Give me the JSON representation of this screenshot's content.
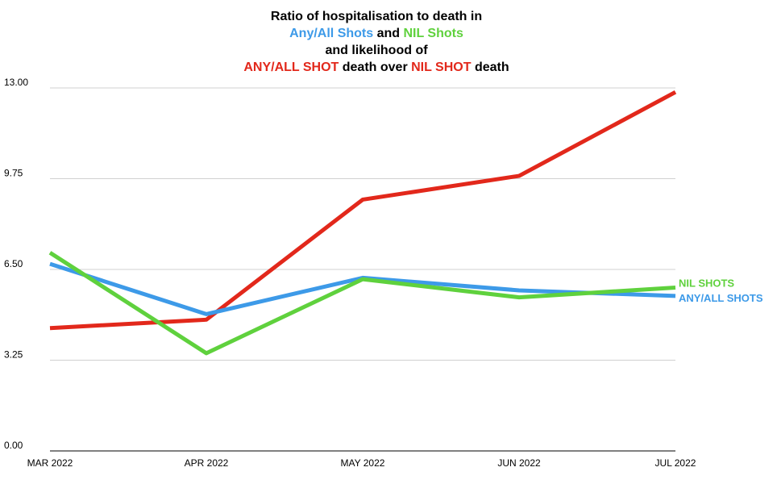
{
  "title": {
    "line1": "Ratio of hospitalisation to death in",
    "line2": [
      {
        "text": "Any/All Shots",
        "color": "#3d9ae8"
      },
      {
        "text": " and ",
        "color": "#000000"
      },
      {
        "text": "NIL Shots",
        "color": "#5fd13d"
      }
    ],
    "line3": "and likelihood of",
    "line4": [
      {
        "text": "ANY/ALL SHOT",
        "color": "#e2281b"
      },
      {
        "text": " death over ",
        "color": "#000000"
      },
      {
        "text": "NIL SHOT",
        "color": "#e2281b"
      },
      {
        "text": " death",
        "color": "#000000"
      }
    ]
  },
  "chart_data": {
    "type": "line",
    "categories": [
      "MAR 2022",
      "APR 2022",
      "MAY 2022",
      "JUN 2022",
      "JUL 2022"
    ],
    "yticks": [
      "0.00",
      "3.25",
      "6.50",
      "9.75",
      "13.00"
    ],
    "ylim": [
      0,
      13
    ],
    "grid": true,
    "series": [
      {
        "key": "red",
        "color": "#e2281b",
        "values": [
          4.4,
          4.7,
          9.0,
          9.85,
          12.85
        ]
      },
      {
        "key": "blue",
        "name": "ANY/ALL SHOTS",
        "color": "#3d9ae8",
        "values": [
          6.7,
          4.9,
          6.2,
          5.75,
          5.55
        ]
      },
      {
        "key": "green",
        "name": "NIL SHOTS",
        "color": "#5fd13d",
        "values": [
          7.1,
          3.5,
          6.15,
          5.5,
          5.85
        ]
      }
    ]
  }
}
